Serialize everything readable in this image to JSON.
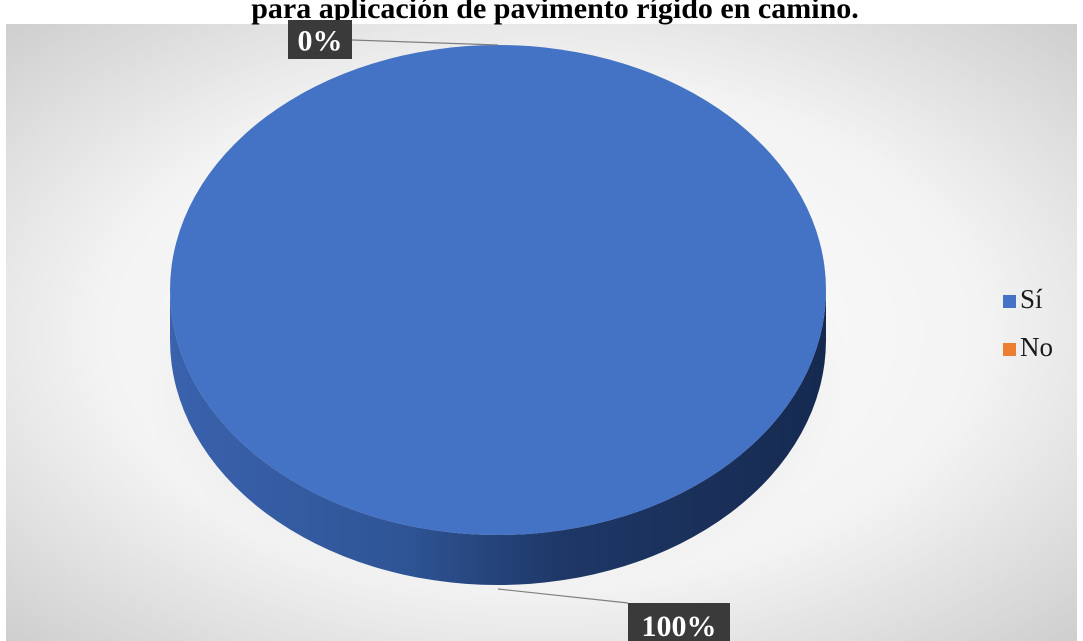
{
  "chart_data": {
    "type": "pie",
    "title": "para aplicación de pavimento rígido en camino.",
    "categories": [
      "Sí",
      "No"
    ],
    "values": [
      100,
      0
    ],
    "data_labels": [
      "100%",
      "0%"
    ],
    "colors": [
      "#4472C4",
      "#ED7D31"
    ],
    "legend": {
      "position": "right",
      "items": [
        "Sí",
        "No"
      ]
    },
    "style": "3d-pie",
    "background": "radial-gradient-gray"
  }
}
